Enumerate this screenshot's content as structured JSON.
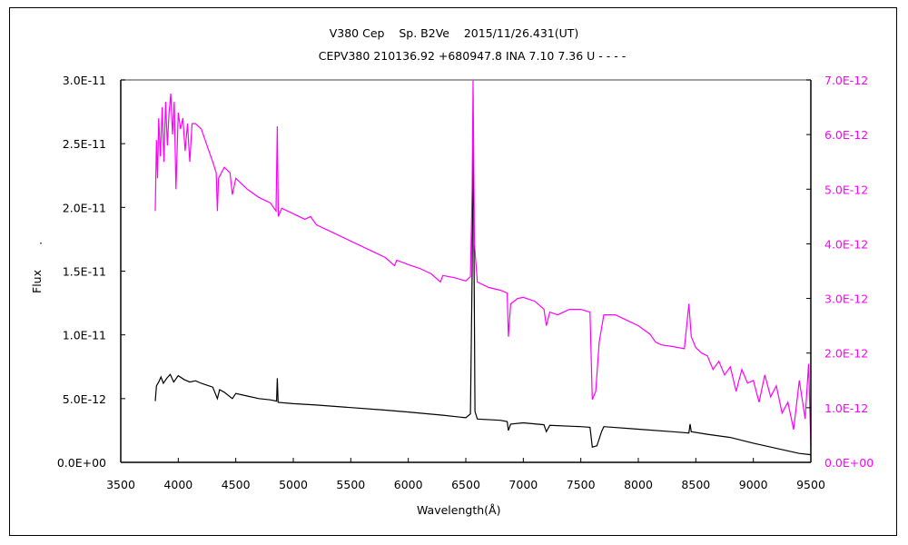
{
  "chart_data": {
    "type": "line",
    "title": "V380 Cep    Sp. B2Ve    2015/11/26.431(UT)",
    "subtitle": "CEPV380 210136.92 +680947.8 INA 7.10 7.36 U - - - -",
    "xlabel": "Wavelength(Å)",
    "ylabel": "Flux",
    "ylabel_mark": "·",
    "xlim": [
      3500,
      9500
    ],
    "x_ticks": [
      3500,
      4000,
      4500,
      5000,
      5500,
      6000,
      6500,
      7000,
      7500,
      8000,
      8500,
      9000,
      9500
    ],
    "x_tick_labels": [
      "3500",
      "4000",
      "4500",
      "5000",
      "5500",
      "6000",
      "6500",
      "7000",
      "7500",
      "8000",
      "8500",
      "9000",
      "9500"
    ],
    "y_left": {
      "lim": [
        0,
        30
      ],
      "units_scale": 1e-12,
      "ticks": [
        0,
        5,
        10,
        15,
        20,
        25,
        30
      ],
      "tick_labels": [
        "0.0E+00",
        "5.0E-12",
        "1.0E-11",
        "1.5E-11",
        "2.0E-11",
        "2.5E-11",
        "3.0E-11"
      ],
      "color": "#000000"
    },
    "y_right": {
      "lim": [
        0,
        7
      ],
      "units_scale": 1e-12,
      "ticks": [
        0,
        1,
        2,
        3,
        4,
        5,
        6,
        7
      ],
      "tick_labels": [
        "0.0E+00",
        "1.0E-12",
        "2.0E-12",
        "3.0E-12",
        "4.0E-12",
        "5.0E-12",
        "6.0E-12",
        "7.0E-12"
      ],
      "color": "#ff00ff"
    },
    "grid": false,
    "series": [
      {
        "name": "magenta-spectrum",
        "axis": "right",
        "color": "#ff00ff",
        "points": [
          [
            3800,
            4.6
          ],
          [
            3810,
            5.9
          ],
          [
            3820,
            5.2
          ],
          [
            3830,
            6.3
          ],
          [
            3845,
            5.6
          ],
          [
            3860,
            6.5
          ],
          [
            3875,
            5.5
          ],
          [
            3890,
            6.6
          ],
          [
            3905,
            5.8
          ],
          [
            3920,
            6.4
          ],
          [
            3935,
            6.75
          ],
          [
            3950,
            6.0
          ],
          [
            3965,
            6.6
          ],
          [
            3980,
            5.0
          ],
          [
            4000,
            6.4
          ],
          [
            4020,
            6.1
          ],
          [
            4040,
            6.3
          ],
          [
            4060,
            5.7
          ],
          [
            4080,
            6.2
          ],
          [
            4100,
            5.5
          ],
          [
            4120,
            6.2
          ],
          [
            4150,
            6.2
          ],
          [
            4200,
            6.1
          ],
          [
            4250,
            5.8
          ],
          [
            4300,
            5.5
          ],
          [
            4330,
            5.3
          ],
          [
            4340,
            4.6
          ],
          [
            4350,
            5.2
          ],
          [
            4400,
            5.4
          ],
          [
            4450,
            5.3
          ],
          [
            4470,
            4.9
          ],
          [
            4500,
            5.2
          ],
          [
            4600,
            5.0
          ],
          [
            4700,
            4.85
          ],
          [
            4800,
            4.75
          ],
          [
            4850,
            4.6
          ],
          [
            4861,
            6.15
          ],
          [
            4870,
            4.5
          ],
          [
            4900,
            4.65
          ],
          [
            5000,
            4.55
          ],
          [
            5100,
            4.45
          ],
          [
            5150,
            4.5
          ],
          [
            5200,
            4.35
          ],
          [
            5300,
            4.25
          ],
          [
            5400,
            4.15
          ],
          [
            5500,
            4.05
          ],
          [
            5600,
            3.95
          ],
          [
            5700,
            3.85
          ],
          [
            5800,
            3.75
          ],
          [
            5880,
            3.6
          ],
          [
            5900,
            3.7
          ],
          [
            6000,
            3.62
          ],
          [
            6100,
            3.55
          ],
          [
            6200,
            3.45
          ],
          [
            6280,
            3.3
          ],
          [
            6300,
            3.42
          ],
          [
            6400,
            3.38
          ],
          [
            6500,
            3.32
          ],
          [
            6540,
            3.4
          ],
          [
            6555,
            5.0
          ],
          [
            6563,
            7.0
          ],
          [
            6575,
            4.0
          ],
          [
            6600,
            3.3
          ],
          [
            6700,
            3.2
          ],
          [
            6800,
            3.15
          ],
          [
            6860,
            3.1
          ],
          [
            6870,
            2.3
          ],
          [
            6890,
            2.9
          ],
          [
            6950,
            3.0
          ],
          [
            7000,
            3.02
          ],
          [
            7100,
            2.95
          ],
          [
            7180,
            2.8
          ],
          [
            7200,
            2.5
          ],
          [
            7230,
            2.75
          ],
          [
            7300,
            2.7
          ],
          [
            7400,
            2.8
          ],
          [
            7500,
            2.8
          ],
          [
            7580,
            2.75
          ],
          [
            7600,
            1.15
          ],
          [
            7630,
            1.3
          ],
          [
            7660,
            2.2
          ],
          [
            7700,
            2.7
          ],
          [
            7800,
            2.7
          ],
          [
            7900,
            2.6
          ],
          [
            8000,
            2.5
          ],
          [
            8100,
            2.35
          ],
          [
            8150,
            2.2
          ],
          [
            8200,
            2.15
          ],
          [
            8300,
            2.12
          ],
          [
            8400,
            2.08
          ],
          [
            8440,
            2.9
          ],
          [
            8460,
            2.3
          ],
          [
            8500,
            2.1
          ],
          [
            8550,
            2.0
          ],
          [
            8600,
            1.95
          ],
          [
            8650,
            1.7
          ],
          [
            8700,
            1.85
          ],
          [
            8750,
            1.6
          ],
          [
            8800,
            1.75
          ],
          [
            8850,
            1.3
          ],
          [
            8900,
            1.7
          ],
          [
            8950,
            1.45
          ],
          [
            9000,
            1.5
          ],
          [
            9050,
            1.1
          ],
          [
            9100,
            1.6
          ],
          [
            9150,
            1.2
          ],
          [
            9200,
            1.4
          ],
          [
            9250,
            0.9
          ],
          [
            9300,
            1.1
          ],
          [
            9350,
            0.6
          ],
          [
            9400,
            1.5
          ],
          [
            9450,
            0.8
          ],
          [
            9480,
            1.8
          ],
          [
            9500,
            0.3
          ]
        ]
      },
      {
        "name": "black-spectrum",
        "axis": "left",
        "color": "#000000",
        "points": [
          [
            3800,
            4.8
          ],
          [
            3810,
            6.0
          ],
          [
            3830,
            6.3
          ],
          [
            3850,
            6.7
          ],
          [
            3870,
            6.2
          ],
          [
            3900,
            6.6
          ],
          [
            3930,
            6.9
          ],
          [
            3960,
            6.3
          ],
          [
            4000,
            6.8
          ],
          [
            4050,
            6.5
          ],
          [
            4100,
            6.3
          ],
          [
            4150,
            6.4
          ],
          [
            4200,
            6.2
          ],
          [
            4300,
            5.9
          ],
          [
            4340,
            5.0
          ],
          [
            4360,
            5.7
          ],
          [
            4400,
            5.5
          ],
          [
            4470,
            5.0
          ],
          [
            4500,
            5.4
          ],
          [
            4600,
            5.2
          ],
          [
            4700,
            5.0
          ],
          [
            4800,
            4.9
          ],
          [
            4855,
            4.8
          ],
          [
            4861,
            6.6
          ],
          [
            4868,
            4.7
          ],
          [
            5000,
            4.6
          ],
          [
            5200,
            4.5
          ],
          [
            5500,
            4.3
          ],
          [
            5800,
            4.1
          ],
          [
            6000,
            3.95
          ],
          [
            6300,
            3.7
          ],
          [
            6500,
            3.5
          ],
          [
            6540,
            3.8
          ],
          [
            6555,
            15
          ],
          [
            6563,
            26.5
          ],
          [
            6570,
            18
          ],
          [
            6580,
            4
          ],
          [
            6600,
            3.4
          ],
          [
            6800,
            3.3
          ],
          [
            6860,
            3.2
          ],
          [
            6870,
            2.5
          ],
          [
            6890,
            3.0
          ],
          [
            7000,
            3.1
          ],
          [
            7180,
            2.95
          ],
          [
            7200,
            2.4
          ],
          [
            7230,
            2.9
          ],
          [
            7500,
            2.8
          ],
          [
            7580,
            2.75
          ],
          [
            7600,
            1.2
          ],
          [
            7640,
            1.3
          ],
          [
            7680,
            2.4
          ],
          [
            7700,
            2.8
          ],
          [
            8000,
            2.6
          ],
          [
            8300,
            2.4
          ],
          [
            8440,
            2.3
          ],
          [
            8450,
            3.0
          ],
          [
            8460,
            2.4
          ],
          [
            8600,
            2.2
          ],
          [
            8800,
            1.95
          ],
          [
            9000,
            1.5
          ],
          [
            9200,
            1.1
          ],
          [
            9400,
            0.7
          ],
          [
            9500,
            0.6
          ]
        ]
      }
    ]
  }
}
